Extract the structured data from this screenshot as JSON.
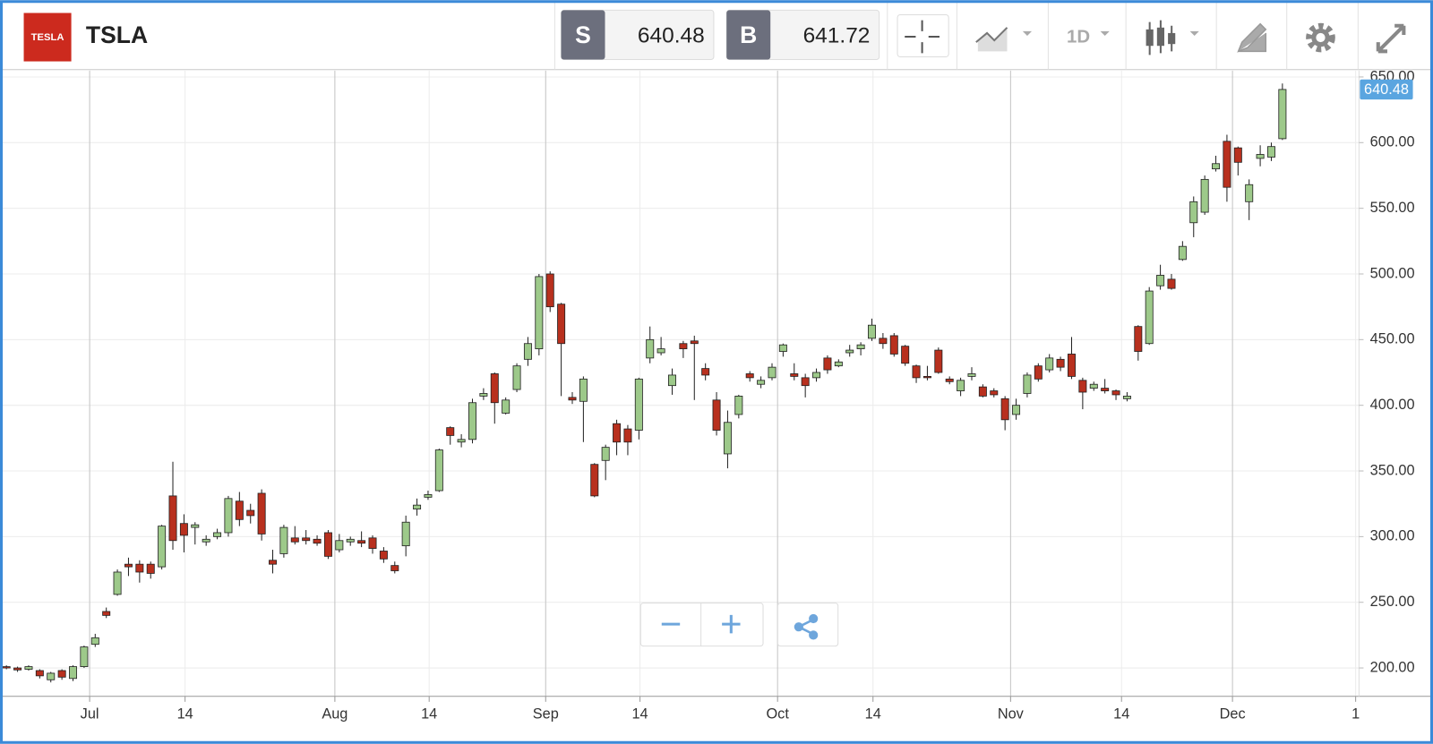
{
  "header": {
    "logo": "TESLA",
    "symbol": "TSLA",
    "sell_label": "S",
    "sell_price": 640.48,
    "buy_label": "B",
    "buy_price": 641.72,
    "interval": "1D"
  },
  "chart_data": {
    "type": "candlestick",
    "x": [
      0,
      1,
      2,
      3,
      4,
      5,
      6,
      7,
      8,
      9,
      10,
      11,
      12,
      13,
      14,
      15,
      16,
      17,
      18,
      19,
      20,
      21,
      22,
      23,
      24,
      25,
      26,
      27,
      28,
      29,
      30,
      31,
      32,
      33,
      34,
      35,
      36,
      37,
      38,
      39,
      40,
      41,
      42,
      43,
      44,
      45,
      46,
      47,
      48,
      49,
      50,
      51,
      52,
      53,
      54,
      55,
      56,
      57,
      58,
      59,
      60,
      61,
      62,
      63,
      64,
      65,
      66,
      67,
      68,
      69,
      70,
      71,
      72,
      73,
      74,
      75,
      76,
      77,
      78,
      79,
      80,
      81,
      82,
      83,
      84,
      85,
      86,
      87,
      88,
      89,
      90,
      91,
      92,
      93,
      94,
      95,
      96,
      97,
      98,
      99,
      100,
      101,
      102,
      103,
      104,
      105,
      106,
      107,
      108,
      109,
      110,
      111,
      112,
      113,
      114,
      115
    ],
    "open": [
      201,
      200,
      199,
      198,
      191,
      198,
      192,
      201,
      218,
      243,
      256,
      279,
      279,
      279,
      277,
      331,
      310,
      307,
      296,
      300,
      303,
      327,
      320,
      333,
      282,
      287,
      299,
      299,
      298,
      303,
      290,
      296,
      297,
      299,
      289,
      278,
      293,
      321,
      330,
      335,
      383,
      372,
      374,
      407,
      424,
      394,
      412,
      435,
      443,
      500,
      477,
      406,
      403,
      355,
      358,
      386,
      382,
      381,
      436,
      440,
      415,
      447,
      449,
      428,
      404,
      363,
      393,
      424,
      416,
      421,
      441,
      424,
      421,
      421,
      436,
      430,
      440,
      443,
      451,
      451,
      453,
      445,
      430,
      422,
      442,
      420,
      411,
      422,
      414,
      411,
      405,
      393,
      409,
      430,
      427,
      435,
      439,
      419,
      413,
      413,
      411,
      405,
      460,
      447,
      491,
      496,
      511,
      539,
      547,
      580,
      601,
      596,
      555,
      588,
      589,
      603
    ],
    "high": [
      202,
      201,
      202,
      199,
      197,
      199,
      202,
      217,
      226,
      246,
      275,
      284,
      282,
      281,
      309,
      357,
      317,
      311,
      301,
      306,
      331,
      334,
      325,
      336,
      290,
      309,
      308,
      305,
      301,
      305,
      302,
      300,
      304,
      301,
      292,
      281,
      316,
      329,
      335,
      367,
      384,
      378,
      405,
      413,
      425,
      406,
      432,
      452,
      500,
      502,
      478,
      410,
      422,
      356,
      370,
      389,
      385,
      421,
      460,
      452,
      428,
      449,
      453,
      432,
      410,
      396,
      408,
      426,
      422,
      432,
      447,
      432,
      424,
      428,
      438,
      435,
      446,
      448,
      466,
      455,
      455,
      446,
      431,
      430,
      444,
      422,
      421,
      429,
      416,
      413,
      407,
      405,
      425,
      432,
      439,
      437,
      452,
      421,
      418,
      420,
      412,
      410,
      461,
      490,
      507,
      500,
      525,
      559,
      575,
      590,
      606,
      597,
      572,
      598,
      600,
      645
    ],
    "low": [
      199,
      197,
      198,
      192,
      189,
      191,
      190,
      200,
      216,
      238,
      255,
      270,
      265,
      268,
      275,
      290,
      288,
      294,
      293,
      298,
      300,
      308,
      310,
      297,
      272,
      284,
      294,
      294,
      293,
      283,
      288,
      293,
      292,
      287,
      280,
      272,
      285,
      316,
      328,
      334,
      370,
      368,
      371,
      404,
      386,
      393,
      410,
      430,
      438,
      471,
      407,
      401,
      372,
      330,
      343,
      362,
      362,
      374,
      432,
      438,
      408,
      436,
      404,
      419,
      377,
      352,
      390,
      418,
      413,
      419,
      437,
      419,
      406,
      418,
      424,
      429,
      437,
      438,
      449,
      443,
      437,
      430,
      417,
      419,
      424,
      416,
      407,
      419,
      406,
      406,
      381,
      389,
      406,
      418,
      425,
      426,
      420,
      397,
      411,
      409,
      404,
      403,
      434,
      446,
      488,
      488,
      510,
      528,
      545,
      578,
      555,
      575,
      541,
      582,
      586,
      602
    ],
    "close": [
      200,
      198.5,
      201,
      194,
      196,
      193,
      201,
      216,
      223,
      240,
      273,
      277,
      273,
      272,
      308,
      297,
      301,
      309,
      298,
      303,
      329,
      313,
      316,
      302,
      279,
      307,
      296,
      297,
      295,
      285,
      297,
      298,
      295,
      291,
      283,
      274,
      311,
      324,
      332,
      366,
      377,
      374,
      402,
      409,
      402,
      404,
      430,
      447,
      498,
      475,
      447,
      404,
      420,
      331,
      368,
      372,
      372,
      420,
      450,
      443,
      423,
      443,
      447,
      423,
      381,
      387,
      407,
      421,
      419,
      429,
      446,
      422,
      415,
      425,
      427,
      433,
      442,
      446,
      461,
      447,
      439,
      432,
      421,
      421,
      425,
      418,
      419,
      424,
      407,
      408,
      389,
      400,
      423,
      420,
      436,
      429,
      422,
      410,
      416,
      411,
      408,
      407,
      441,
      487,
      499,
      489,
      521,
      555,
      572,
      584,
      566,
      585,
      568,
      591,
      597,
      640.48
    ],
    "up_color": "#9dc98a",
    "down_color": "#b8301e",
    "last_price": 640.48,
    "xlim": [
      -0.58,
      121.9
    ],
    "xticks": [
      {
        "value": 7.5,
        "label": "Jul"
      },
      {
        "value": 16.1,
        "label": "14"
      },
      {
        "value": 29.6,
        "label": "Aug"
      },
      {
        "value": 38.1,
        "label": "14"
      },
      {
        "value": 48.6,
        "label": "Sep"
      },
      {
        "value": 57.1,
        "label": "14"
      },
      {
        "value": 69.5,
        "label": "Oct"
      },
      {
        "value": 78.1,
        "label": "14"
      },
      {
        "value": 90.5,
        "label": "Nov"
      },
      {
        "value": 100.5,
        "label": "14"
      },
      {
        "value": 110.5,
        "label": "Dec"
      },
      {
        "value": 121.6,
        "label": "1"
      }
    ],
    "ylim": [
      178.4,
      654.9
    ],
    "yticks": [
      {
        "value": 200,
        "label": "200.00"
      },
      {
        "value": 250,
        "label": "250.00"
      },
      {
        "value": 300,
        "label": "300.00"
      },
      {
        "value": 350,
        "label": "350.00"
      },
      {
        "value": 400,
        "label": "400.00"
      },
      {
        "value": 450,
        "label": "450.00"
      },
      {
        "value": 500,
        "label": "500.00"
      },
      {
        "value": 550,
        "label": "550.00"
      },
      {
        "value": 600,
        "label": "600.00"
      },
      {
        "value": 650,
        "label": "650.00"
      }
    ],
    "grid": true
  }
}
